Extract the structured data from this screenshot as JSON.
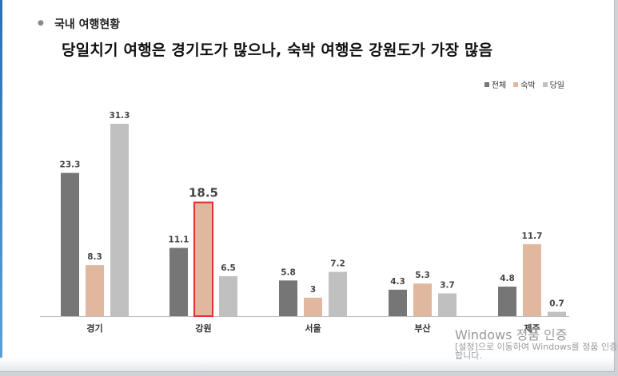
{
  "header": {
    "bullet": "●",
    "section_title": "국내 여행현황",
    "headline": "당일치기 여행은 경기도가 많으나, 숙박 여행은 강원도가 가장 많음"
  },
  "colors": {
    "total": "#767676",
    "overnight": "#e0b89f",
    "day": "#c0c0c0",
    "highlight": "#e03030"
  },
  "chart_data": {
    "type": "bar",
    "categories": [
      "경기",
      "강원",
      "서울",
      "부산",
      "제주"
    ],
    "series": [
      {
        "name": "전체",
        "values": [
          23.3,
          11.1,
          5.8,
          4.3,
          4.8
        ],
        "labels": [
          "23.3",
          "11.1",
          "5.8",
          "4.3",
          "4.8"
        ]
      },
      {
        "name": "숙박",
        "values": [
          8.3,
          18.5,
          3,
          5.3,
          11.7
        ],
        "labels": [
          "8.3",
          "18.5",
          "3",
          "5.3",
          "11.7"
        ]
      },
      {
        "name": "당일",
        "values": [
          31.3,
          6.5,
          7.2,
          3.7,
          0.7
        ],
        "labels": [
          "31.3",
          "6.5",
          "7.2",
          "3.7",
          "0.7"
        ]
      }
    ],
    "highlight": {
      "series": 1,
      "category": 1
    },
    "title": "",
    "xlabel": "",
    "ylabel": "",
    "ylim": [
      0,
      31.3
    ],
    "grid": false,
    "legend": "top-right"
  },
  "watermark": {
    "title": "Windows 정품 인증",
    "subtitle": "[설정]으로 이동하여 Windows를 정품 인증합니다."
  }
}
